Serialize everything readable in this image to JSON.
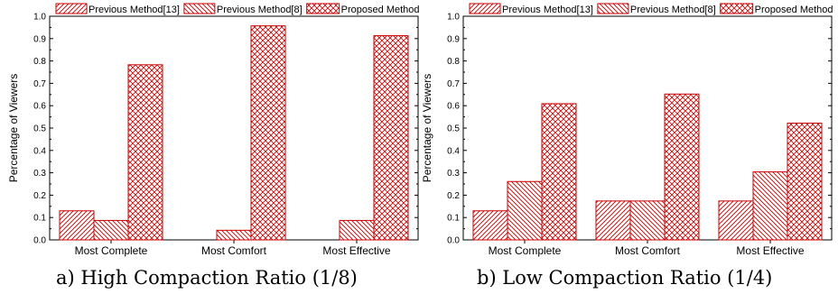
{
  "colors": {
    "bar_stroke": "#cc0000",
    "axis": "#000000",
    "background": "#ffffff"
  },
  "chart_data": [
    {
      "type": "bar",
      "caption": "a) High Compaction Ratio (1/8)",
      "title": "",
      "xlabel": "",
      "ylabel": "Percentage of Viewers",
      "ylim": [
        0,
        1.0
      ],
      "yticks": [
        "0.0",
        "0.1",
        "0.2",
        "0.3",
        "0.4",
        "0.5",
        "0.6",
        "0.7",
        "0.8",
        "0.9",
        "1.0"
      ],
      "categories": [
        "Most Complete",
        "Most Comfort",
        "Most Effective"
      ],
      "legend_position": "top",
      "grid": false,
      "series": [
        {
          "name": "Previous Method[13]",
          "pattern": "diagonal-up",
          "values": [
            0.13,
            0.0,
            0.0
          ]
        },
        {
          "name": "Previous Method[8]",
          "pattern": "diagonal-down",
          "values": [
            0.087,
            0.043,
            0.087
          ]
        },
        {
          "name": "Proposed Method",
          "pattern": "crosshatch",
          "values": [
            0.783,
            0.957,
            0.913
          ]
        }
      ]
    },
    {
      "type": "bar",
      "caption": "b) Low Compaction Ratio (1/4)",
      "title": "",
      "xlabel": "",
      "ylabel": "Percentage of Viewers",
      "ylim": [
        0,
        1.0
      ],
      "yticks": [
        "0.0",
        "0.1",
        "0.2",
        "0.3",
        "0.4",
        "0.5",
        "0.6",
        "0.7",
        "0.8",
        "0.9",
        "1.0"
      ],
      "categories": [
        "Most Complete",
        "Most Comfort",
        "Most Effective"
      ],
      "legend_position": "top",
      "grid": false,
      "series": [
        {
          "name": "Previous Method[13]",
          "pattern": "diagonal-up",
          "values": [
            0.13,
            0.174,
            0.174
          ]
        },
        {
          "name": "Previous Method[8]",
          "pattern": "diagonal-down",
          "values": [
            0.261,
            0.174,
            0.304
          ]
        },
        {
          "name": "Proposed Method",
          "pattern": "crosshatch",
          "values": [
            0.609,
            0.652,
            0.522
          ]
        }
      ]
    }
  ]
}
